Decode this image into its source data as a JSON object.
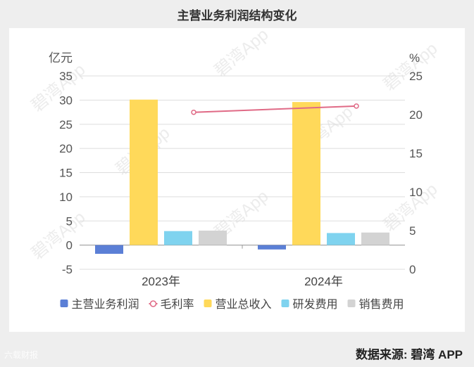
{
  "title": "主营业务利润结构变化",
  "source": "数据来源: 碧湾 APP",
  "watermark": "碧湾App",
  "corner_mark": "六载财报",
  "chart_data": {
    "type": "bar",
    "categories": [
      "2023年",
      "2024年"
    ],
    "left_axis": {
      "unit": "亿元",
      "ylim": [
        -5,
        35
      ],
      "ticks": [
        -5,
        0,
        5,
        10,
        15,
        20,
        25,
        30,
        35
      ]
    },
    "right_axis": {
      "unit": "%",
      "ylim": [
        0,
        25
      ],
      "ticks": [
        0,
        5,
        10,
        15,
        20,
        25
      ]
    },
    "series": [
      {
        "name": "主营业务利润",
        "kind": "bar",
        "axis": "left",
        "color": "#5b7fd6",
        "values": [
          -1.8,
          -0.9
        ]
      },
      {
        "name": "毛利率",
        "kind": "line",
        "axis": "right",
        "color": "#e06a86",
        "values": [
          20.3,
          21.1
        ]
      },
      {
        "name": "营业总收入",
        "kind": "bar",
        "axis": "left",
        "color": "#ffd95a",
        "values": [
          30.1,
          29.6
        ]
      },
      {
        "name": "研发费用",
        "kind": "bar",
        "axis": "left",
        "color": "#7fd3ef",
        "values": [
          2.9,
          2.5
        ]
      },
      {
        "name": "销售费用",
        "kind": "bar",
        "axis": "left",
        "color": "#d3d3d3",
        "values": [
          3.0,
          2.6
        ]
      }
    ],
    "grid": true,
    "legend_position": "bottom"
  }
}
